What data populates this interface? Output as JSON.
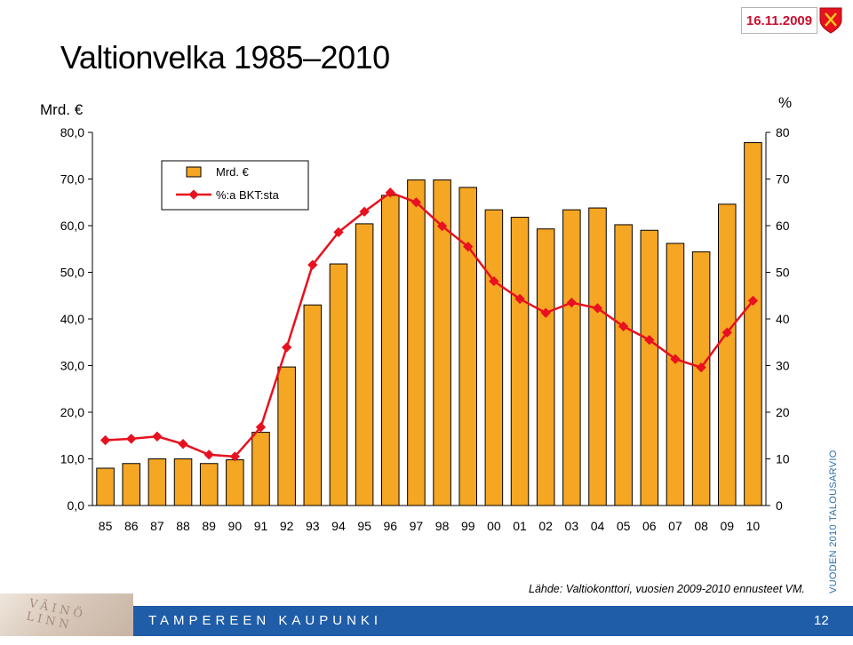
{
  "header": {
    "date": "16.11.2009"
  },
  "page_title": "Valtionvelka 1985–2010",
  "left_unit": "Mrd. €",
  "right_unit": "%",
  "side_label": "VUODEN 2010 TALOUSARVIO",
  "source": "Lähde: Valtiokonttori, vuosien 2009-2010  ennusteet VM.",
  "footer": {
    "name": "TAMPEREEN KAUPUNKI",
    "page_number": "12",
    "deco_text": "VÄINÖ LINN"
  },
  "colors": {
    "bar": "#f5a623",
    "line": "#e8111f",
    "footer": "#1f5da8",
    "date": "#c8102e"
  },
  "chart_data": {
    "type": "bar",
    "categories": [
      "85",
      "86",
      "87",
      "88",
      "89",
      "90",
      "91",
      "92",
      "93",
      "94",
      "95",
      "96",
      "97",
      "98",
      "99",
      "00",
      "01",
      "02",
      "03",
      "04",
      "05",
      "06",
      "07",
      "08",
      "09",
      "10"
    ],
    "series": [
      {
        "name": "Mrd. €",
        "type": "bar",
        "axis": "left",
        "values": [
          8.0,
          9.0,
          10.0,
          10.0,
          9.0,
          9.8,
          15.7,
          29.7,
          43.0,
          51.8,
          60.4,
          66.5,
          69.8,
          69.8,
          68.2,
          63.4,
          61.8,
          59.3,
          63.4,
          63.8,
          60.2,
          59.0,
          56.2,
          54.4,
          64.6,
          77.8
        ]
      },
      {
        "name": "%:a BKT:sta",
        "type": "line",
        "axis": "right",
        "values": [
          14.0,
          14.3,
          14.8,
          13.2,
          10.9,
          10.5,
          16.8,
          33.9,
          51.6,
          58.6,
          63.0,
          67.1,
          65.0,
          59.9,
          55.5,
          48.1,
          44.3,
          41.3,
          43.5,
          42.3,
          38.4,
          35.5,
          31.4,
          29.6,
          37.1,
          43.9
        ]
      }
    ],
    "left_axis": {
      "ticks": [
        "0,0",
        "10,0",
        "20,0",
        "30,0",
        "40,0",
        "50,0",
        "60,0",
        "70,0",
        "80,0"
      ],
      "ylim": [
        0,
        80
      ]
    },
    "right_axis": {
      "ticks": [
        "0",
        "10",
        "20",
        "30",
        "40",
        "50",
        "60",
        "70",
        "80"
      ],
      "ylim": [
        0,
        80
      ]
    },
    "legend": {
      "position": "top-left",
      "entries": [
        "Mrd. €",
        "%:a BKT:sta"
      ]
    },
    "grid": false
  }
}
